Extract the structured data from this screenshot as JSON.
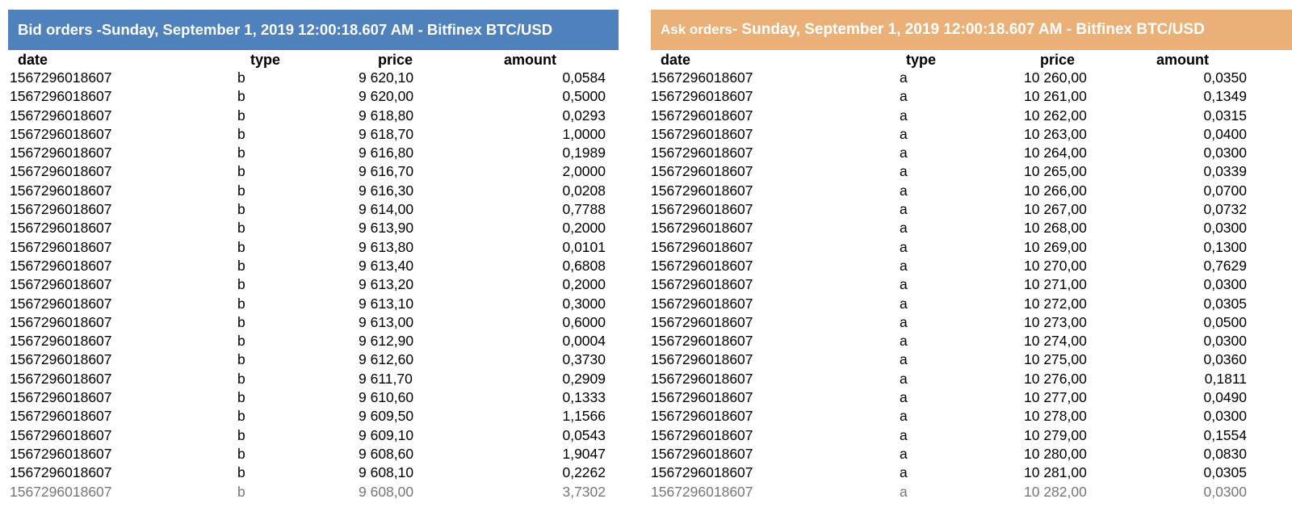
{
  "bid": {
    "title": {
      "prefix": "Bid orders - ",
      "rest": "Sunday, September 1, 2019 12:00:18.607 AM - Bitfinex BTC/USD"
    },
    "headers": [
      "date",
      "type",
      "price",
      "amount"
    ],
    "rows": [
      [
        "1567296018607",
        "b",
        "9 620,10",
        "0,0584"
      ],
      [
        "1567296018607",
        "b",
        "9 620,00",
        "0,5000"
      ],
      [
        "1567296018607",
        "b",
        "9 618,80",
        "0,0293"
      ],
      [
        "1567296018607",
        "b",
        "9 618,70",
        "1,0000"
      ],
      [
        "1567296018607",
        "b",
        "9 616,80",
        "0,1989"
      ],
      [
        "1567296018607",
        "b",
        "9 616,70",
        "2,0000"
      ],
      [
        "1567296018607",
        "b",
        "9 616,30",
        "0,0208"
      ],
      [
        "1567296018607",
        "b",
        "9 614,00",
        "0,7788"
      ],
      [
        "1567296018607",
        "b",
        "9 613,90",
        "0,2000"
      ],
      [
        "1567296018607",
        "b",
        "9 613,80",
        "0,0101"
      ],
      [
        "1567296018607",
        "b",
        "9 613,40",
        "0,6808"
      ],
      [
        "1567296018607",
        "b",
        "9 613,20",
        "0,2000"
      ],
      [
        "1567296018607",
        "b",
        "9 613,10",
        "0,3000"
      ],
      [
        "1567296018607",
        "b",
        "9 613,00",
        "0,6000"
      ],
      [
        "1567296018607",
        "b",
        "9 612,90",
        "0,0004"
      ],
      [
        "1567296018607",
        "b",
        "9 612,60",
        "0,3730"
      ],
      [
        "1567296018607",
        "b",
        "9 611,70",
        "0,2909"
      ],
      [
        "1567296018607",
        "b",
        "9 610,60",
        "0,1333"
      ],
      [
        "1567296018607",
        "b",
        "9 609,50",
        "1,1566"
      ],
      [
        "1567296018607",
        "b",
        "9 609,10",
        "0,0543"
      ],
      [
        "1567296018607",
        "b",
        "9 608,60",
        "1,9047"
      ],
      [
        "1567296018607",
        "b",
        "9 608,10",
        "0,2262"
      ],
      [
        "1567296018607",
        "b",
        "9 608,00",
        "3,7302"
      ]
    ],
    "banner_color": "#4f81bd"
  },
  "ask": {
    "title": {
      "prefix": "Ask orders",
      "rest": " - Sunday, September 1, 2019 12:00:18.607 AM - Bitfinex BTC/USD"
    },
    "headers": [
      "date",
      "type",
      "price",
      "amount"
    ],
    "rows": [
      [
        "1567296018607",
        "a",
        "10 260,00",
        "0,0350"
      ],
      [
        "1567296018607",
        "a",
        "10 261,00",
        "0,1349"
      ],
      [
        "1567296018607",
        "a",
        "10 262,00",
        "0,0315"
      ],
      [
        "1567296018607",
        "a",
        "10 263,00",
        "0,0400"
      ],
      [
        "1567296018607",
        "a",
        "10 264,00",
        "0,0300"
      ],
      [
        "1567296018607",
        "a",
        "10 265,00",
        "0,0339"
      ],
      [
        "1567296018607",
        "a",
        "10 266,00",
        "0,0700"
      ],
      [
        "1567296018607",
        "a",
        "10 267,00",
        "0,0732"
      ],
      [
        "1567296018607",
        "a",
        "10 268,00",
        "0,0300"
      ],
      [
        "1567296018607",
        "a",
        "10 269,00",
        "0,1300"
      ],
      [
        "1567296018607",
        "a",
        "10 270,00",
        "0,7629"
      ],
      [
        "1567296018607",
        "a",
        "10 271,00",
        "0,0300"
      ],
      [
        "1567296018607",
        "a",
        "10 272,00",
        "0,0305"
      ],
      [
        "1567296018607",
        "a",
        "10 273,00",
        "0,0500"
      ],
      [
        "1567296018607",
        "a",
        "10 274,00",
        "0,0300"
      ],
      [
        "1567296018607",
        "a",
        "10 275,00",
        "0,0360"
      ],
      [
        "1567296018607",
        "a",
        "10 276,00",
        "0,1811"
      ],
      [
        "1567296018607",
        "a",
        "10 277,00",
        "0,0490"
      ],
      [
        "1567296018607",
        "a",
        "10 278,00",
        "0,0300"
      ],
      [
        "1567296018607",
        "a",
        "10 279,00",
        "0,1554"
      ],
      [
        "1567296018607",
        "a",
        "10 280,00",
        "0,0830"
      ],
      [
        "1567296018607",
        "a",
        "10 281,00",
        "0,0305"
      ],
      [
        "1567296018607",
        "a",
        "10 282,00",
        "0,0300"
      ]
    ],
    "banner_color": "#ebb077"
  }
}
